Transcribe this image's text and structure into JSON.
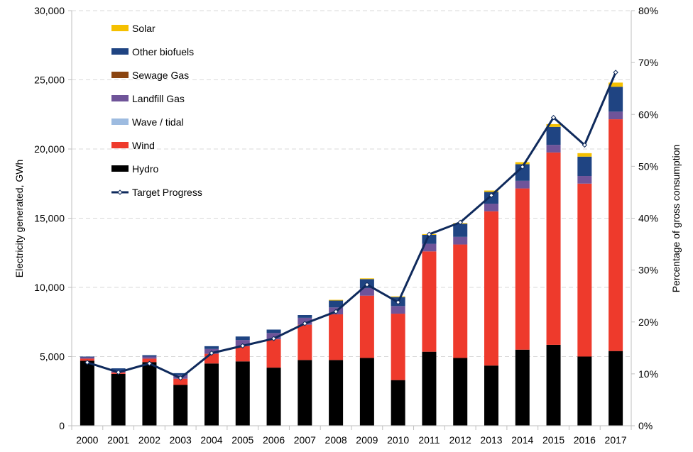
{
  "chart_data": {
    "type": "bar",
    "stacked": true,
    "categories": [
      "2000",
      "2001",
      "2002",
      "2003",
      "2004",
      "2005",
      "2006",
      "2007",
      "2008",
      "2009",
      "2010",
      "2011",
      "2012",
      "2013",
      "2014",
      "2015",
      "2016",
      "2017"
    ],
    "ylabel": "Electricity generated, GWh",
    "y2label": "Percentage of gross consumption",
    "ylim": [
      0,
      30000
    ],
    "y2lim": [
      0,
      80
    ],
    "y_ticks": [
      "0",
      "5,000",
      "10,000",
      "15,000",
      "20,000",
      "25,000",
      "30,000"
    ],
    "y2_ticks": [
      "0%",
      "10%",
      "20%",
      "30%",
      "40%",
      "50%",
      "60%",
      "70%",
      "80%"
    ],
    "grid": true,
    "legend_position": "top-left",
    "series": [
      {
        "name": "Hydro",
        "color": "#000000",
        "values": [
          4700,
          3750,
          4600,
          2950,
          4500,
          4650,
          4200,
          4750,
          4750,
          4900,
          3300,
          5350,
          4900,
          4350,
          5500,
          5850,
          5000,
          5400
        ]
      },
      {
        "name": "Wind",
        "color": "#ee3a2c",
        "values": [
          150,
          100,
          250,
          450,
          700,
          1100,
          2050,
          2550,
          3300,
          4500,
          4800,
          7250,
          8200,
          11150,
          11650,
          13900,
          12500,
          16750
        ]
      },
      {
        "name": "Wave / tidal",
        "color": "#9dbbe0",
        "values": [
          0,
          0,
          0,
          0,
          0,
          0,
          0,
          0,
          0,
          0,
          0,
          0,
          0,
          0,
          0,
          0,
          0,
          0
        ]
      },
      {
        "name": "Landfill Gas",
        "color": "#6f5499",
        "values": [
          100,
          150,
          150,
          250,
          350,
          450,
          450,
          500,
          500,
          550,
          550,
          550,
          550,
          550,
          550,
          550,
          550,
          550
        ]
      },
      {
        "name": "Sewage Gas",
        "color": "#8b4510",
        "values": [
          0,
          0,
          0,
          0,
          0,
          0,
          0,
          0,
          0,
          0,
          0,
          0,
          0,
          0,
          0,
          0,
          0,
          0
        ]
      },
      {
        "name": "Other biofuels",
        "color": "#1f4482",
        "values": [
          50,
          150,
          100,
          150,
          200,
          250,
          250,
          200,
          500,
          650,
          650,
          650,
          950,
          850,
          1200,
          1300,
          1400,
          1800
        ]
      },
      {
        "name": "Solar",
        "color": "#f5c000",
        "values": [
          0,
          0,
          0,
          0,
          0,
          0,
          0,
          0,
          50,
          50,
          50,
          50,
          50,
          100,
          150,
          200,
          250,
          300
        ]
      }
    ],
    "line_series": {
      "name": "Target Progress",
      "color": "#0f2a5c",
      "axis": "right",
      "values": [
        12.2,
        10.3,
        12.0,
        9.2,
        14.0,
        15.4,
        16.8,
        19.7,
        22.0,
        27.2,
        23.8,
        36.9,
        39.2,
        44.4,
        49.9,
        59.4,
        54.1,
        68.1
      ]
    }
  }
}
